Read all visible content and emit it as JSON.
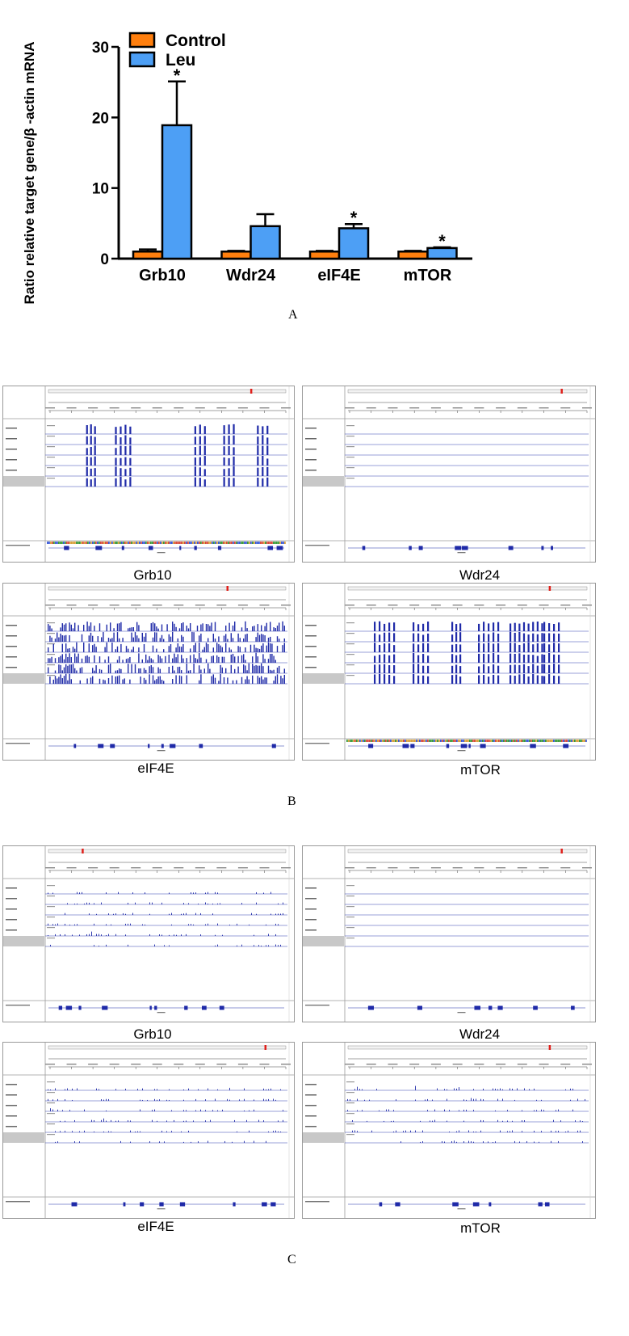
{
  "panel_letters": {
    "a": "A",
    "b": "B",
    "c": "C"
  },
  "chart_data": {
    "type": "bar",
    "ylabel": "Ratio relative target gene/β -actin mRNA",
    "xlabel": "",
    "ylim": [
      0,
      30
    ],
    "yticks": [
      "0",
      "10",
      "20",
      "30"
    ],
    "categories": [
      "Grb10",
      "Wdr24",
      "eIF4E",
      "mTOR"
    ],
    "legend_position": "top-left",
    "series": [
      {
        "name": "Control",
        "color": "#ff7f0e",
        "values": [
          1.0,
          1.0,
          1.0,
          1.0
        ],
        "errors": [
          0.3,
          0.1,
          0.1,
          0.1
        ]
      },
      {
        "name": "Leu",
        "color": "#4d9ff5",
        "values": [
          18.9,
          4.6,
          4.3,
          1.5
        ],
        "errors": [
          6.2,
          1.7,
          0.6,
          0.1
        ]
      }
    ],
    "significance": [
      "*",
      "",
      "*",
      "*"
    ]
  },
  "igv_colors": {
    "frame": "#9a9a9a",
    "signal": "#1f2aa8",
    "track_line": "#3340b0",
    "highlight": "#c8c8c8",
    "marker": "#e0201b"
  },
  "panel_b": {
    "labels": {
      "grb10": "Grb10",
      "wdr24": "Wdr24",
      "eif4e": "eIF4E",
      "mtor": "mTOR"
    }
  },
  "panel_c": {
    "labels": {
      "grb10": "Grb10",
      "wdr24": "Wdr24",
      "eif4e": "eIF4E",
      "mtor": "mTOR"
    }
  }
}
